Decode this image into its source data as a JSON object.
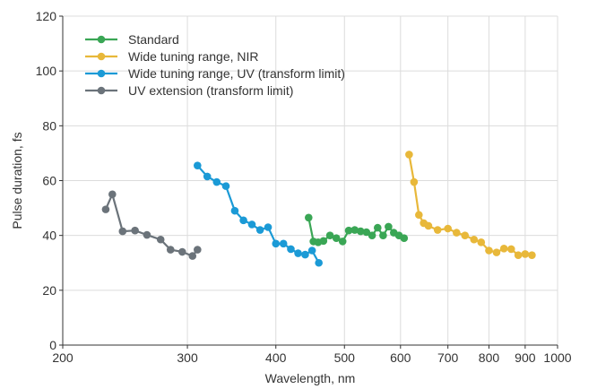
{
  "chart_data": {
    "type": "line",
    "xlabel": "Wavelength, nm",
    "ylabel": "Pulse duration, fs",
    "xscale": "log",
    "xlim": [
      200,
      1000
    ],
    "ylim": [
      0,
      120
    ],
    "x_ticks": [
      200,
      300,
      400,
      500,
      600,
      700,
      800,
      900,
      1000
    ],
    "x_tick_labels": [
      "200",
      "300",
      "400",
      "500",
      "600",
      "700",
      "800",
      "900",
      "1000"
    ],
    "y_ticks": [
      0,
      20,
      40,
      60,
      80,
      100,
      120
    ],
    "y_tick_labels": [
      "0",
      "20",
      "40",
      "60",
      "80",
      "100",
      "120"
    ],
    "grid": true,
    "legend_position": "top-left",
    "series": [
      {
        "name": "Standard",
        "color": "#3aa655",
        "points": [
          [
            445,
            46.5
          ],
          [
            452,
            37.8
          ],
          [
            459,
            37.5
          ],
          [
            467,
            38.0
          ],
          [
            477,
            40.0
          ],
          [
            487,
            39.0
          ],
          [
            497,
            37.8
          ],
          [
            507,
            41.8
          ],
          [
            517,
            42.0
          ],
          [
            527,
            41.5
          ],
          [
            537,
            41.2
          ],
          [
            547,
            40.0
          ],
          [
            557,
            42.8
          ],
          [
            567,
            40.0
          ],
          [
            577,
            43.2
          ],
          [
            587,
            41.0
          ],
          [
            597,
            40.0
          ],
          [
            607,
            39.0
          ]
        ]
      },
      {
        "name": "Wide tuning range, NIR",
        "color": "#e8b83a",
        "points": [
          [
            617,
            69.5
          ],
          [
            627,
            59.5
          ],
          [
            637,
            47.5
          ],
          [
            647,
            44.5
          ],
          [
            657,
            43.5
          ],
          [
            677,
            42.0
          ],
          [
            700,
            42.5
          ],
          [
            720,
            41.0
          ],
          [
            740,
            40.0
          ],
          [
            762,
            38.5
          ],
          [
            780,
            37.5
          ],
          [
            800,
            34.5
          ],
          [
            820,
            33.8
          ],
          [
            840,
            35.2
          ],
          [
            860,
            35.0
          ],
          [
            880,
            32.8
          ],
          [
            900,
            33.2
          ],
          [
            920,
            32.8
          ]
        ]
      },
      {
        "name": "Wide tuning range, UV (transform limit)",
        "color": "#1b9ad6",
        "points": [
          [
            310,
            65.5
          ],
          [
            320,
            61.5
          ],
          [
            330,
            59.5
          ],
          [
            340,
            58.0
          ],
          [
            350,
            49.0
          ],
          [
            360,
            45.5
          ],
          [
            370,
            44.0
          ],
          [
            380,
            42.0
          ],
          [
            390,
            43.0
          ],
          [
            400,
            37.0
          ],
          [
            410,
            37.0
          ],
          [
            420,
            35.0
          ],
          [
            430,
            33.5
          ],
          [
            440,
            33.0
          ],
          [
            450,
            34.5
          ],
          [
            460,
            30.0
          ]
        ]
      },
      {
        "name": "UV extension (transform limit)",
        "color": "#6b737a",
        "points": [
          [
            230,
            49.5
          ],
          [
            235,
            55.0
          ],
          [
            243,
            41.5
          ],
          [
            253,
            41.8
          ],
          [
            263,
            40.2
          ],
          [
            275,
            38.5
          ],
          [
            284,
            34.8
          ],
          [
            295,
            34.0
          ],
          [
            305,
            32.5
          ],
          [
            310,
            34.8
          ]
        ]
      }
    ]
  }
}
